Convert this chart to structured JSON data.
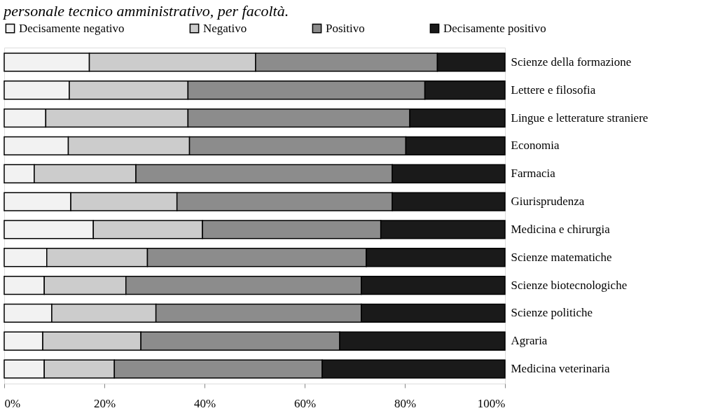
{
  "chart_data": {
    "type": "bar",
    "orientation": "horizontal",
    "stacked": true,
    "title": "personale tecnico amministrativo, per facoltà.",
    "categories": [
      "Scienze della formazione",
      "Lettere e filosofia",
      "Lingue e letterature straniere",
      "Economia",
      "Farmacia",
      "Giurisprudenza",
      "Medicina e chirurgia",
      "Scienze matematiche",
      "Scienze biotecnologiche",
      "Scienze politiche",
      "Agraria",
      "Medicina veterinaria"
    ],
    "series": [
      {
        "name": "Decisamente negativo",
        "color": "#f2f2f2",
        "values": [
          17,
          13,
          8.3,
          12.8,
          6,
          13.3,
          17.8,
          8.5,
          8,
          9.5,
          7.7,
          8
        ]
      },
      {
        "name": "Negativo",
        "color": "#cccccc",
        "values": [
          33.2,
          23.7,
          28.4,
          24.2,
          20.3,
          21.2,
          21.8,
          20.1,
          16.3,
          20.8,
          19.6,
          14
        ]
      },
      {
        "name": "Positivo",
        "color": "#8c8c8c",
        "values": [
          36.3,
          47.3,
          44.3,
          43.2,
          51.2,
          43,
          35.6,
          43.7,
          47,
          41,
          39.7,
          41.5
        ]
      },
      {
        "name": "Decisamente positivo",
        "color": "#1a1a1a",
        "values": [
          13.5,
          16,
          19,
          19.8,
          22.5,
          22.5,
          24.8,
          27.7,
          28.7,
          28.7,
          33,
          36.5
        ]
      }
    ],
    "xlim": [
      0,
      100
    ],
    "xticks": [
      {
        "value": 0,
        "label": "0%"
      },
      {
        "value": 20,
        "label": "20%"
      },
      {
        "value": 40,
        "label": "40%"
      },
      {
        "value": 60,
        "label": "60%"
      },
      {
        "value": 80,
        "label": "80%"
      },
      {
        "value": 100,
        "label": "100%"
      }
    ],
    "legend": "top",
    "grid": false
  }
}
